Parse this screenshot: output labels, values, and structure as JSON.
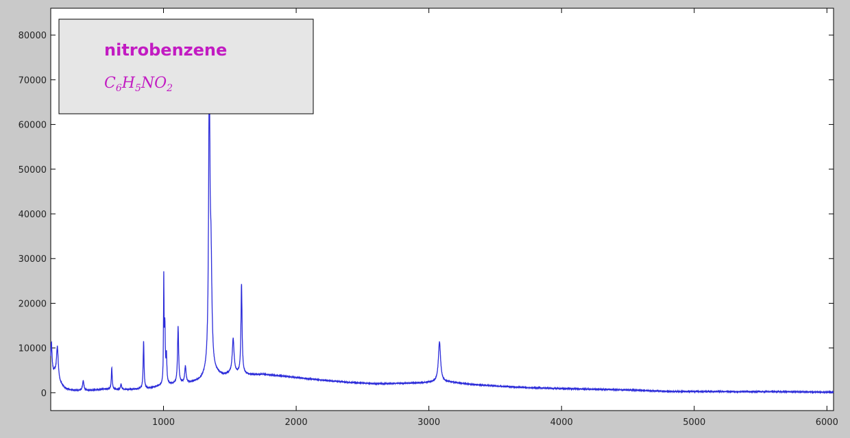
{
  "chart_data": {
    "type": "line",
    "title": "",
    "xlabel": "",
    "ylabel": "",
    "xlim": [
      150,
      6050
    ],
    "ylim": [
      -4000,
      86000
    ],
    "xticks": [
      1000,
      2000,
      3000,
      4000,
      5000,
      6000
    ],
    "yticks": [
      0,
      10000,
      20000,
      30000,
      40000,
      50000,
      60000,
      70000,
      80000
    ],
    "grid": false,
    "line_color": "#2b2bd9",
    "legend": {
      "placement": "top-left",
      "title": "nitrobenzene",
      "formula_parts": [
        "C",
        "6",
        "H",
        "5",
        "NO",
        "2"
      ],
      "text_color": "#c21bc2"
    },
    "series": [
      {
        "baseline": [
          [
            150,
            3800
          ],
          [
            180,
            4200
          ],
          [
            220,
            2000
          ],
          [
            260,
            900
          ],
          [
            300,
            600
          ],
          [
            350,
            500
          ],
          [
            450,
            500
          ],
          [
            550,
            800
          ],
          [
            650,
            700
          ],
          [
            750,
            700
          ],
          [
            900,
            1000
          ],
          [
            1000,
            1600
          ],
          [
            1100,
            2000
          ],
          [
            1200,
            2200
          ],
          [
            1280,
            2800
          ],
          [
            1330,
            4200
          ],
          [
            1400,
            4200
          ],
          [
            1450,
            3800
          ],
          [
            1500,
            4200
          ],
          [
            1560,
            4200
          ],
          [
            1650,
            4000
          ],
          [
            1750,
            4100
          ],
          [
            1900,
            3700
          ],
          [
            2000,
            3400
          ],
          [
            2200,
            2800
          ],
          [
            2400,
            2300
          ],
          [
            2600,
            2000
          ],
          [
            2800,
            2100
          ],
          [
            2950,
            2200
          ],
          [
            3000,
            2300
          ],
          [
            3150,
            2400
          ],
          [
            3300,
            1900
          ],
          [
            3500,
            1500
          ],
          [
            3700,
            1200
          ],
          [
            4000,
            900
          ],
          [
            4200,
            800
          ],
          [
            4400,
            700
          ],
          [
            4600,
            500
          ],
          [
            4800,
            300
          ],
          [
            5000,
            250
          ],
          [
            5400,
            250
          ],
          [
            5800,
            200
          ],
          [
            6050,
            100
          ]
        ],
        "peaks": [
          {
            "x": 155,
            "height": 7200,
            "width": 6
          },
          {
            "x": 200,
            "height": 7100,
            "width": 8
          },
          {
            "x": 395,
            "height": 2200,
            "width": 6
          },
          {
            "x": 610,
            "height": 4800,
            "width": 4
          },
          {
            "x": 680,
            "height": 1200,
            "width": 5
          },
          {
            "x": 850,
            "height": 10600,
            "width": 4
          },
          {
            "x": 1002,
            "height": 22800,
            "width": 2.5
          },
          {
            "x": 1010,
            "height": 12500,
            "width": 4
          },
          {
            "x": 1022,
            "height": 6000,
            "width": 4
          },
          {
            "x": 1110,
            "height": 12600,
            "width": 5
          },
          {
            "x": 1165,
            "height": 3700,
            "width": 6
          },
          {
            "x": 1345,
            "height": 64000,
            "width": 6
          },
          {
            "x": 1358,
            "height": 22000,
            "width": 8
          },
          {
            "x": 1525,
            "height": 7800,
            "width": 8
          },
          {
            "x": 1588,
            "height": 20000,
            "width": 5
          },
          {
            "x": 3080,
            "height": 9000,
            "width": 10
          }
        ]
      }
    ]
  }
}
